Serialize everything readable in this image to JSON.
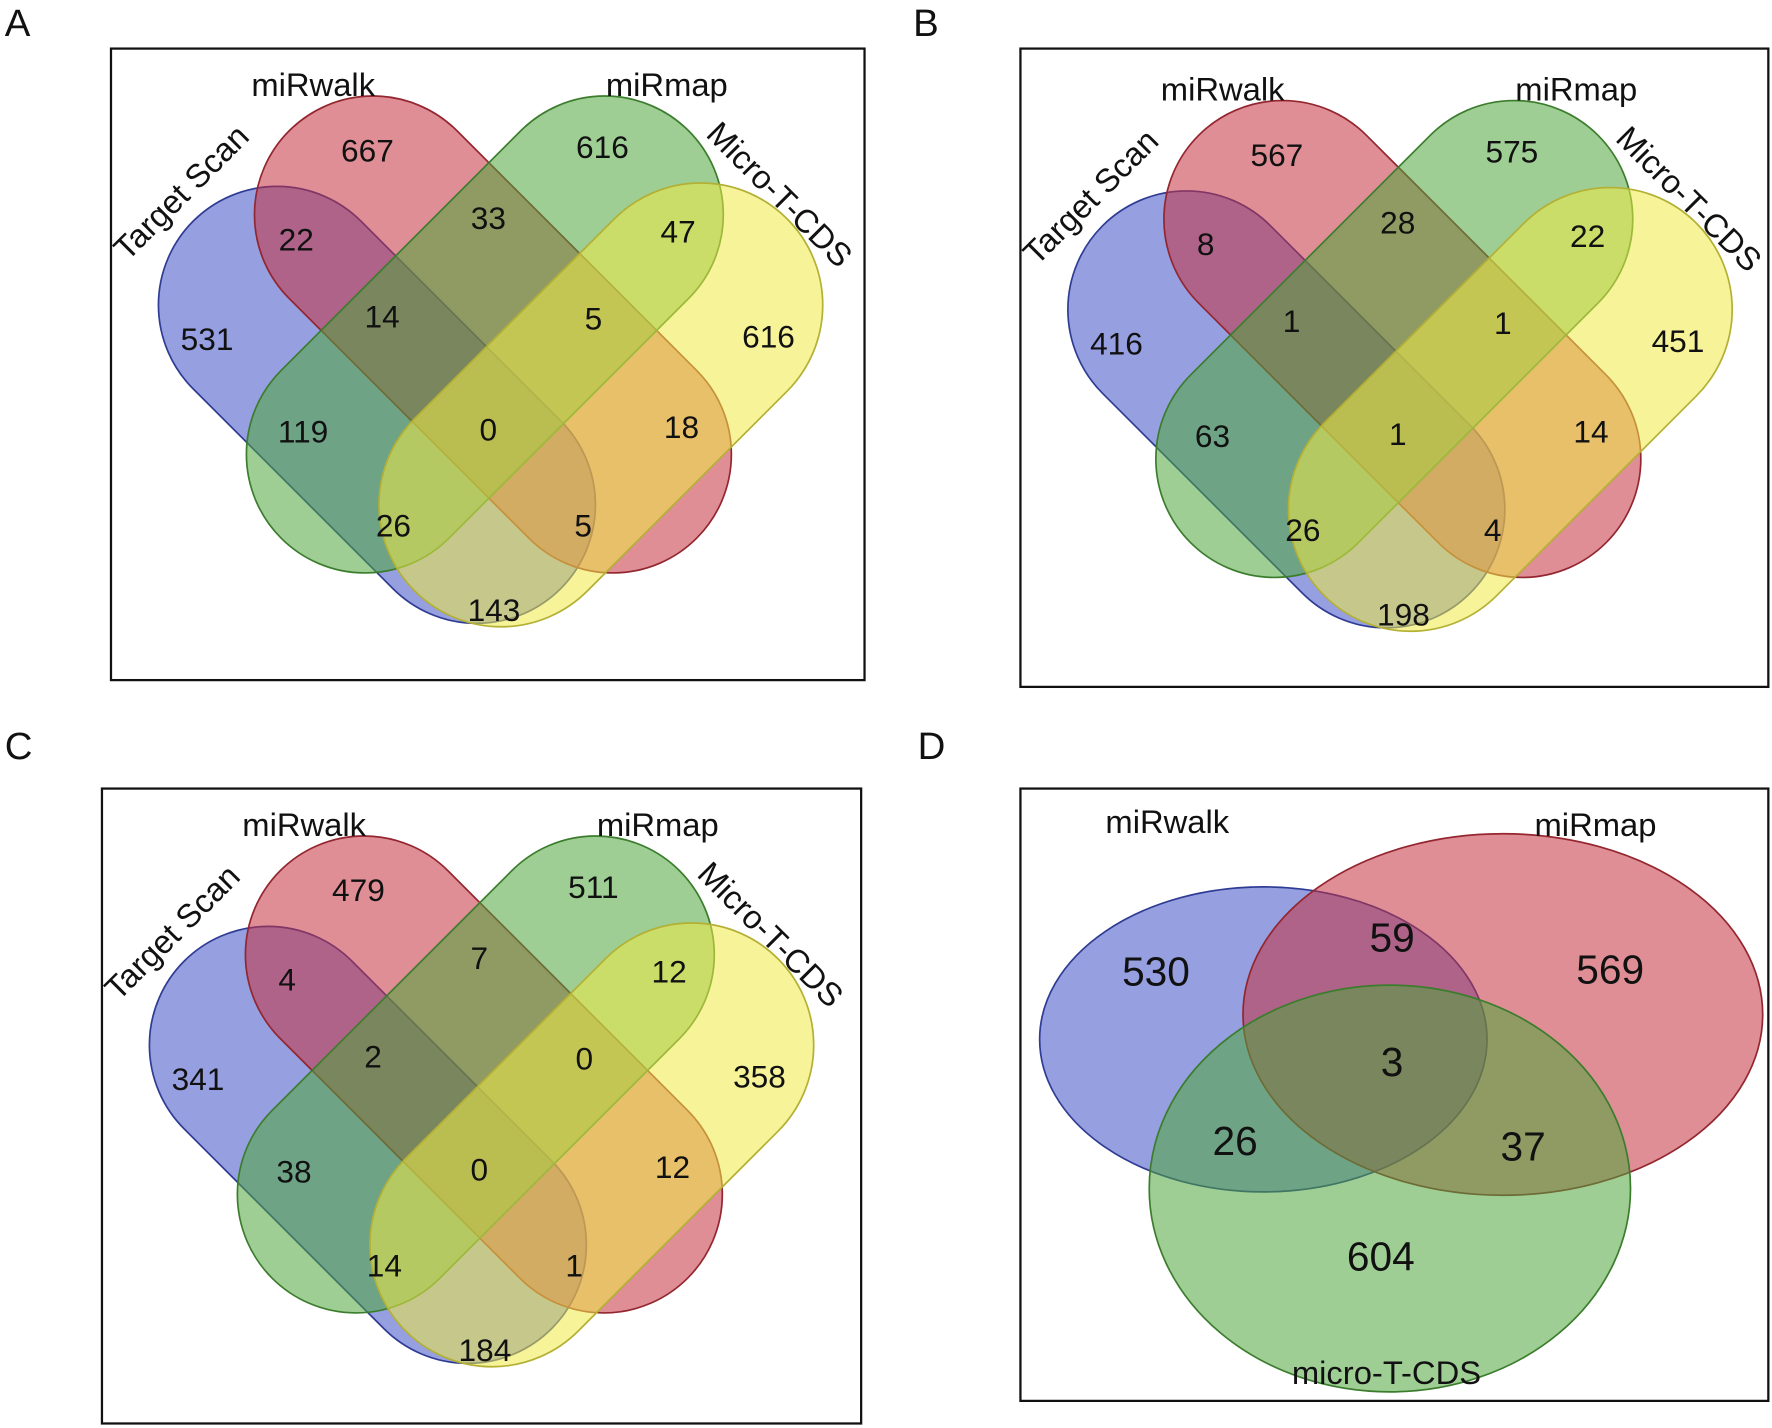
{
  "chart_data": [
    {
      "type": "venn",
      "panel": "A",
      "sets": [
        "Target Scan",
        "miRwalk",
        "miRmap",
        "Micro-T-CDS"
      ],
      "colors": [
        "#3f50c4",
        "#c5323f",
        "#4ea63c",
        "#eeea45"
      ],
      "regions": [
        {
          "sets": [
            "miRwalk"
          ],
          "value": 667
        },
        {
          "sets": [
            "miRmap"
          ],
          "value": 616
        },
        {
          "sets": [
            "Target Scan",
            "miRwalk"
          ],
          "value": 22
        },
        {
          "sets": [
            "miRwalk",
            "miRmap"
          ],
          "value": 33
        },
        {
          "sets": [
            "miRmap",
            "Micro-T-CDS"
          ],
          "value": 47
        },
        {
          "sets": [
            "Target Scan"
          ],
          "value": 531
        },
        {
          "sets": [
            "Target Scan",
            "miRwalk",
            "miRmap"
          ],
          "value": 14
        },
        {
          "sets": [
            "miRwalk",
            "miRmap",
            "Micro-T-CDS"
          ],
          "value": 5
        },
        {
          "sets": [
            "Micro-T-CDS"
          ],
          "value": 616
        },
        {
          "sets": [
            "Target Scan",
            "miRmap"
          ],
          "value": 119
        },
        {
          "sets": [
            "Target Scan",
            "miRwalk",
            "miRmap",
            "Micro-T-CDS"
          ],
          "value": 0
        },
        {
          "sets": [
            "miRwalk",
            "Micro-T-CDS"
          ],
          "value": 18
        },
        {
          "sets": [
            "Target Scan",
            "miRmap",
            "Micro-T-CDS"
          ],
          "value": 26
        },
        {
          "sets": [
            "Target Scan",
            "miRwalk",
            "Micro-T-CDS"
          ],
          "value": 5
        },
        {
          "sets": [
            "Target Scan",
            "Micro-T-CDS"
          ],
          "value": 143
        }
      ]
    },
    {
      "type": "venn",
      "panel": "B",
      "sets": [
        "Target Scan",
        "miRwalk",
        "miRmap",
        "Micro-T-CDS"
      ],
      "colors": [
        "#3f50c4",
        "#c5323f",
        "#4ea63c",
        "#eeea45"
      ],
      "regions": [
        {
          "sets": [
            "miRwalk"
          ],
          "value": 567
        },
        {
          "sets": [
            "miRmap"
          ],
          "value": 575
        },
        {
          "sets": [
            "Target Scan",
            "miRwalk"
          ],
          "value": 8
        },
        {
          "sets": [
            "miRwalk",
            "miRmap"
          ],
          "value": 28
        },
        {
          "sets": [
            "miRmap",
            "Micro-T-CDS"
          ],
          "value": 22
        },
        {
          "sets": [
            "Target Scan"
          ],
          "value": 416
        },
        {
          "sets": [
            "Target Scan",
            "miRwalk",
            "miRmap"
          ],
          "value": 1
        },
        {
          "sets": [
            "miRwalk",
            "miRmap",
            "Micro-T-CDS"
          ],
          "value": 1
        },
        {
          "sets": [
            "Micro-T-CDS"
          ],
          "value": 451
        },
        {
          "sets": [
            "Target Scan",
            "miRmap"
          ],
          "value": 63
        },
        {
          "sets": [
            "Target Scan",
            "miRwalk",
            "miRmap",
            "Micro-T-CDS"
          ],
          "value": 1
        },
        {
          "sets": [
            "miRwalk",
            "Micro-T-CDS"
          ],
          "value": 14
        },
        {
          "sets": [
            "Target Scan",
            "miRmap",
            "Micro-T-CDS"
          ],
          "value": 26
        },
        {
          "sets": [
            "Target Scan",
            "miRwalk",
            "Micro-T-CDS"
          ],
          "value": 4
        },
        {
          "sets": [
            "Target Scan",
            "Micro-T-CDS"
          ],
          "value": 198
        }
      ]
    },
    {
      "type": "venn",
      "panel": "C",
      "sets": [
        "Target Scan",
        "miRwalk",
        "miRmap",
        "Micro-T-CDS"
      ],
      "colors": [
        "#3f50c4",
        "#c5323f",
        "#4ea63c",
        "#eeea45"
      ],
      "regions": [
        {
          "sets": [
            "miRwalk"
          ],
          "value": 479
        },
        {
          "sets": [
            "miRmap"
          ],
          "value": 511
        },
        {
          "sets": [
            "Target Scan",
            "miRwalk"
          ],
          "value": 4
        },
        {
          "sets": [
            "miRwalk",
            "miRmap"
          ],
          "value": 7
        },
        {
          "sets": [
            "miRmap",
            "Micro-T-CDS"
          ],
          "value": 12
        },
        {
          "sets": [
            "Target Scan"
          ],
          "value": 341
        },
        {
          "sets": [
            "Target Scan",
            "miRwalk",
            "miRmap"
          ],
          "value": 2
        },
        {
          "sets": [
            "miRwalk",
            "miRmap",
            "Micro-T-CDS"
          ],
          "value": 0
        },
        {
          "sets": [
            "Micro-T-CDS"
          ],
          "value": 358
        },
        {
          "sets": [
            "Target Scan",
            "miRmap"
          ],
          "value": 38
        },
        {
          "sets": [
            "Target Scan",
            "miRwalk",
            "miRmap",
            "Micro-T-CDS"
          ],
          "value": 0
        },
        {
          "sets": [
            "miRwalk",
            "Micro-T-CDS"
          ],
          "value": 12
        },
        {
          "sets": [
            "Target Scan",
            "miRmap",
            "Micro-T-CDS"
          ],
          "value": 14
        },
        {
          "sets": [
            "Target Scan",
            "miRwalk",
            "Micro-T-CDS"
          ],
          "value": 1
        },
        {
          "sets": [
            "Target Scan",
            "Micro-T-CDS"
          ],
          "value": 184
        }
      ]
    },
    {
      "type": "venn",
      "panel": "D",
      "sets": [
        "miRwalk",
        "miRmap",
        "micro-T-CDS"
      ],
      "colors": [
        "#3f50c4",
        "#c5323f",
        "#4ea63c"
      ],
      "regions": [
        {
          "sets": [
            "miRwalk"
          ],
          "value": 530
        },
        {
          "sets": [
            "miRwalk",
            "miRmap"
          ],
          "value": 59
        },
        {
          "sets": [
            "miRmap"
          ],
          "value": 569
        },
        {
          "sets": [
            "miRwalk",
            "miRmap",
            "micro-T-CDS"
          ],
          "value": 3
        },
        {
          "sets": [
            "miRwalk",
            "micro-T-CDS"
          ],
          "value": 26
        },
        {
          "sets": [
            "miRmap",
            "micro-T-CDS"
          ],
          "value": 37
        },
        {
          "sets": [
            "micro-T-CDS"
          ],
          "value": 604
        }
      ]
    }
  ]
}
